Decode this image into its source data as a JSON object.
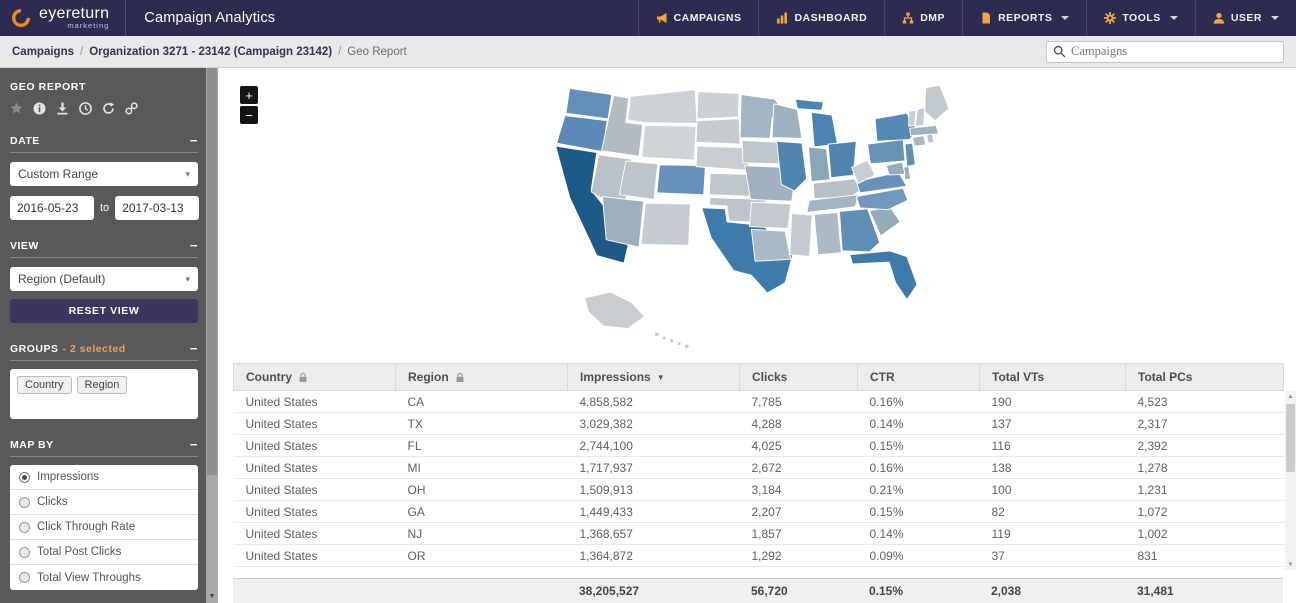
{
  "navbar": {
    "brand": "eyereturn",
    "brand_tagline": "marketing",
    "app_title": "Campaign Analytics",
    "items": [
      {
        "label": "CAMPAIGNS"
      },
      {
        "label": "DASHBOARD"
      },
      {
        "label": "DMP"
      },
      {
        "label": "REPORTS",
        "dropdown": true
      },
      {
        "label": "TOOLS",
        "dropdown": true
      },
      {
        "label": "USER",
        "dropdown": true
      }
    ]
  },
  "breadcrumb": {
    "links": [
      "Campaigns",
      "Organization 3271 - 23142 (Campaign 23142)"
    ],
    "current": "Geo Report",
    "separator": "/"
  },
  "search": {
    "placeholder": "Campaigns"
  },
  "sidebar": {
    "title": "GEO REPORT",
    "sections": {
      "date": {
        "label": "DATE",
        "collapse": "−",
        "range": "Custom Range",
        "from": "2016-05-23",
        "to_word": "to",
        "to": "2017-03-13"
      },
      "view": {
        "label": "VIEW",
        "collapse": "−",
        "selected": "Region (Default)",
        "reset": "RESET VIEW"
      },
      "groups": {
        "label": "GROUPS",
        "note": "- 2 selected",
        "collapse": "−",
        "tags": [
          "Country",
          "Region"
        ]
      },
      "map_by": {
        "label": "MAP BY",
        "collapse": "−",
        "options": [
          {
            "label": "Impressions",
            "selected": true
          },
          {
            "label": "Clicks",
            "selected": false
          },
          {
            "label": "Click Through Rate",
            "selected": false
          },
          {
            "label": "Total Post Clicks",
            "selected": false
          },
          {
            "label": "Total View Throughs",
            "selected": false
          }
        ]
      }
    }
  },
  "map": {
    "zoom_in": "+",
    "zoom_out": "−",
    "state_colors": {
      "WA": "#628fb8",
      "OR": "#5a8ab5",
      "CA": "#1d5a88",
      "NV": "#b9c0c6",
      "ID": "#b3bcc3",
      "MT": "#cdd2d6",
      "WY": "#d0d4d8",
      "UT": "#bcc3c9",
      "CO": "#6691b9",
      "AZ": "#9db0bf",
      "NM": "#c5cbd0",
      "ND": "#cbd0d4",
      "SD": "#c6cbd0",
      "NE": "#c8cdd2",
      "KS": "#c0c7cc",
      "OK": "#bdc4ca",
      "TX": "#3e7bab",
      "MN": "#a3b5c3",
      "IA": "#bfc6cb",
      "MO": "#a0b2c0",
      "AR": "#c2c8ce",
      "LA": "#a9b9c5",
      "WI": "#9db1c0",
      "IL": "#4f85b1",
      "MS": "#c4cacf",
      "MI": "#4c83b0",
      "MI_UP": "#4c83b0",
      "IN": "#8ca6b9",
      "OH": "#4f85b1",
      "KY": "#b6bfc6",
      "TN": "#a3b5c2",
      "AL": "#abbac5",
      "GA": "#5f8eb7",
      "FL": "#3e7bab",
      "SC": "#95abbc",
      "NC": "#7099bd",
      "VA": "#6691b8",
      "WV": "#c7ccd1",
      "PA": "#6994ba",
      "NY": "#5588b3",
      "VT": "#c9ced3",
      "NH": "#c5cbd0",
      "ME": "#c1c8cd",
      "MA": "#9fb2c1",
      "CT": "#a9b8c3",
      "RI": "#bcc3c9",
      "NJ": "#5f8eb7",
      "DE": "#98aebd",
      "MD": "#96acbc",
      "AK": "#c7ccd1",
      "HI": "#c4cacf"
    }
  },
  "table": {
    "columns": [
      "Country",
      "Region",
      "Impressions",
      "Clicks",
      "CTR",
      "Total VTs",
      "Total PCs"
    ],
    "sort_column": "Impressions",
    "rows": [
      [
        "United States",
        "CA",
        "4,858,582",
        "7,785",
        "0.16%",
        "190",
        "4,523"
      ],
      [
        "United States",
        "TX",
        "3,029,382",
        "4,288",
        "0.14%",
        "137",
        "2,317"
      ],
      [
        "United States",
        "FL",
        "2,744,100",
        "4,025",
        "0.15%",
        "116",
        "2,392"
      ],
      [
        "United States",
        "MI",
        "1,717,937",
        "2,672",
        "0.16%",
        "138",
        "1,278"
      ],
      [
        "United States",
        "OH",
        "1,509,913",
        "3,184",
        "0.21%",
        "100",
        "1,231"
      ],
      [
        "United States",
        "GA",
        "1,449,433",
        "2,207",
        "0.15%",
        "82",
        "1,072"
      ],
      [
        "United States",
        "NJ",
        "1,368,657",
        "1,857",
        "0.14%",
        "119",
        "1,002"
      ],
      [
        "United States",
        "OR",
        "1,364,872",
        "1,292",
        "0.09%",
        "37",
        "831"
      ]
    ],
    "totals": [
      "",
      "",
      "38,205,527",
      "56,720",
      "0.15%",
      "2,038",
      "31,481"
    ]
  }
}
